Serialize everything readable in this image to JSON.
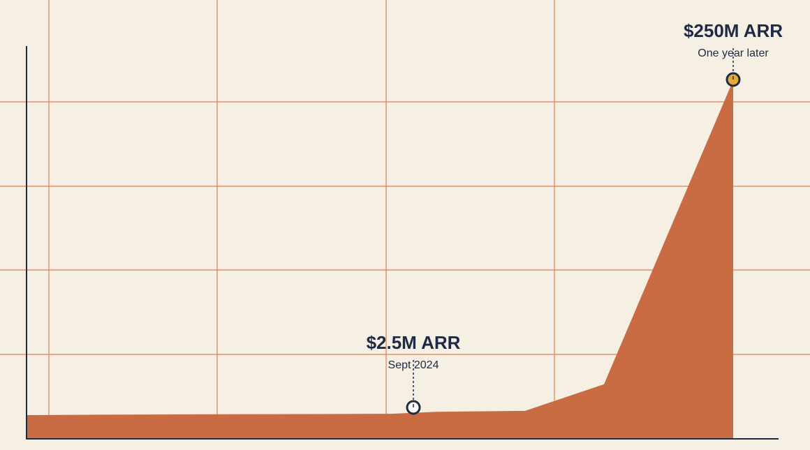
{
  "chart_data": {
    "type": "area",
    "x": [
      0,
      1,
      2,
      3,
      4,
      5,
      6,
      7,
      8
    ],
    "series": [
      {
        "values": [
          0.0,
          0.3,
          0.6,
          0.8,
          1.0,
          2.5,
          3.2,
          23,
          250
        ]
      }
    ],
    "grid": true,
    "annotations": [
      {
        "x": 5,
        "y": 2.5,
        "label": "$2.5M ARR",
        "sublabel": "Sept 2024",
        "marker": "hollow"
      },
      {
        "x": 8,
        "y": 250,
        "label": "$250M ARR",
        "sublabel": "One year later",
        "marker": "filled"
      }
    ]
  },
  "colors": {
    "background": "#f5efe4",
    "area": "#c96c43",
    "grid": "#e0804a",
    "axis": "#1f2a44",
    "text": "#1f2a44",
    "marker_fill_highlight": "#e6a838"
  }
}
